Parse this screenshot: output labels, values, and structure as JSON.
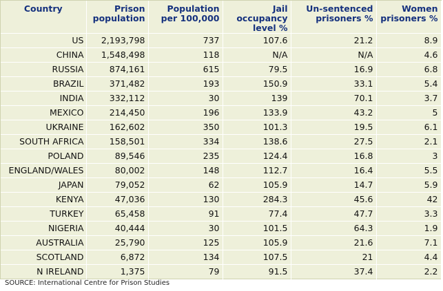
{
  "table": {
    "headers": [
      "Country",
      "Prison population",
      "Population per 100,000",
      "Jail occupancy level %",
      "Un-sentenced prisoners %",
      "Women prisoners %"
    ],
    "rows": [
      [
        "US",
        "2,193,798",
        "737",
        "107.6",
        "21.2",
        "8.9"
      ],
      [
        "CHINA",
        "1,548,498",
        "118",
        "N/A",
        "N/A",
        "4.6"
      ],
      [
        "RUSSIA",
        "874,161",
        "615",
        "79.5",
        "16.9",
        "6.8"
      ],
      [
        "BRAZIL",
        "371,482",
        "193",
        "150.9",
        "33.1",
        "5.4"
      ],
      [
        "INDIA",
        "332,112",
        "30",
        "139",
        "70.1",
        "3.7"
      ],
      [
        "MEXICO",
        "214,450",
        "196",
        "133.9",
        "43.2",
        "5"
      ],
      [
        "UKRAINE",
        "162,602",
        "350",
        "101.3",
        "19.5",
        "6.1"
      ],
      [
        "SOUTH AFRICA",
        "158,501",
        "334",
        "138.6",
        "27.5",
        "2.1"
      ],
      [
        "POLAND",
        "89,546",
        "235",
        "124.4",
        "16.8",
        "3"
      ],
      [
        "ENGLAND/WALES",
        "80,002",
        "148",
        "112.7",
        "16.4",
        "5.5"
      ],
      [
        "JAPAN",
        "79,052",
        "62",
        "105.9",
        "14.7",
        "5.9"
      ],
      [
        "KENYA",
        "47,036",
        "130",
        "284.3",
        "45.6",
        "42"
      ],
      [
        "TURKEY",
        "65,458",
        "91",
        "77.4",
        "47.7",
        "3.3"
      ],
      [
        "NIGERIA",
        "40,444",
        "30",
        "101.5",
        "64.3",
        "1.9"
      ],
      [
        "AUSTRALIA",
        "25,790",
        "125",
        "105.9",
        "21.6",
        "7.1"
      ],
      [
        "SCOTLAND",
        "6,872",
        "134",
        "107.5",
        "21",
        "4.4"
      ],
      [
        "N IRELAND",
        "1,375",
        "79",
        "91.5",
        "37.4",
        "2.2"
      ]
    ]
  },
  "source": "SOURCE: International Centre for Prison Studies"
}
